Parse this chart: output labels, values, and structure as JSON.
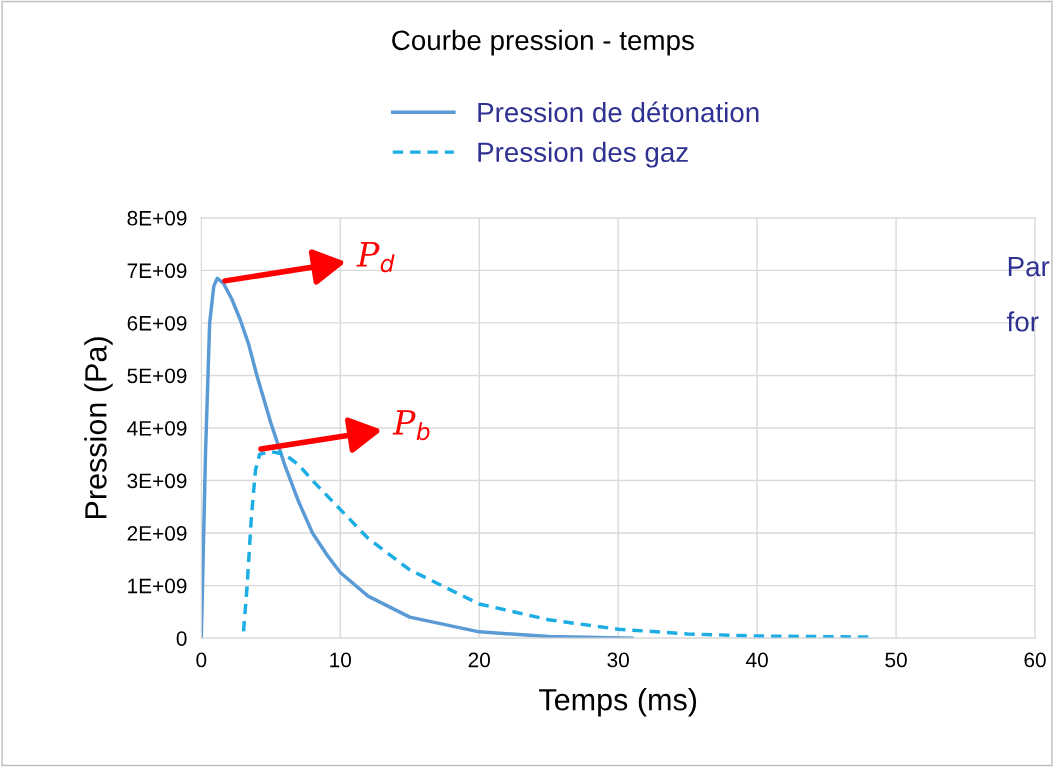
{
  "chart_data": {
    "type": "line",
    "title": "Courbe pression - temps",
    "xlabel": "Temps (ms)",
    "ylabel": "Pression (Pa)",
    "series": [
      {
        "name": "Pression de détonation",
        "color": "#5b9bd5",
        "line_style": "solid",
        "x": [
          0,
          0.3,
          0.6,
          0.9,
          1.15,
          1.6,
          2.2,
          2.8,
          3.4,
          4,
          5,
          6,
          7,
          8,
          9,
          10,
          12,
          15,
          20,
          25,
          31
        ],
        "values": [
          0,
          3500000000.0,
          6000000000.0,
          6700000000.0,
          6850000000.0,
          6750000000.0,
          6450000000.0,
          6060000000.0,
          5600000000.0,
          5000000000.0,
          4100000000.0,
          3300000000.0,
          2600000000.0,
          2000000000.0,
          1600000000.0,
          1250000000.0,
          800000000.0,
          400000000.0,
          120000000.0,
          30000000.0,
          0
        ]
      },
      {
        "name": "Pression des gaz",
        "color": "#1cade4",
        "line_style": "dashed",
        "x": [
          3,
          3.3,
          3.6,
          3.9,
          4.2,
          5,
          6,
          7,
          8,
          10,
          12,
          15,
          20,
          25,
          30,
          35,
          40,
          48
        ],
        "values": [
          0,
          1000000000.0,
          2300000000.0,
          3200000000.0,
          3500000000.0,
          3550000000.0,
          3500000000.0,
          3300000000.0,
          3000000000.0,
          2450000000.0,
          1900000000.0,
          1300000000.0,
          650000000.0,
          350000000.0,
          170000000.0,
          80000000.0,
          40000000.0,
          20000000.0
        ]
      }
    ],
    "xlim": [
      0,
      60
    ],
    "xticks": [
      0,
      10,
      20,
      30,
      40,
      50,
      60
    ],
    "ylim": [
      0,
      8000000000.0
    ],
    "yticks": [
      {
        "value": 0,
        "label": "0"
      },
      {
        "value": 1000000000.0,
        "label": "1E+09"
      },
      {
        "value": 2000000000.0,
        "label": "2E+09"
      },
      {
        "value": 3000000000.0,
        "label": "3E+09"
      },
      {
        "value": 4000000000.0,
        "label": "4E+09"
      },
      {
        "value": 5000000000.0,
        "label": "5E+09"
      },
      {
        "value": 6000000000.0,
        "label": "6E+09"
      },
      {
        "value": 7000000000.0,
        "label": "7E+09"
      },
      {
        "value": 8000000000.0,
        "label": "8E+09"
      }
    ],
    "grid": true,
    "legend": "top",
    "marker": "none",
    "annotations": [
      {
        "text": "P$_{d}$",
        "x": 1.7,
        "y": 6800000000.0
      },
      {
        "text": "P$_{b}$",
        "x": 4.3,
        "y": 3600000000.0
      },
      "Par",
      "for"
    ]
  }
}
